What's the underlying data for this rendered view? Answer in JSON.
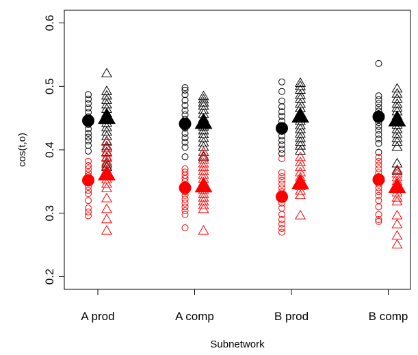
{
  "chart_data": {
    "type": "scatter",
    "xlabel": "Subnetwork",
    "ylabel": "cos(t,o)",
    "categories": [
      "A prod",
      "A comp",
      "B prod",
      "B comp"
    ],
    "ylim": [
      0.18,
      0.62
    ],
    "yticks": [
      0.2,
      0.3,
      0.4,
      0.5,
      0.6
    ],
    "grid": false,
    "legend": "none",
    "colors": {
      "black": "#000000",
      "red": "#ff0000"
    },
    "series": [
      {
        "marker": "circle",
        "color": "#000000",
        "offset": "left",
        "values": [
          [
            0.487,
            0.48,
            0.473,
            0.466,
            0.459,
            0.452,
            0.446,
            0.44,
            0.433,
            0.426,
            0.42,
            0.414,
            0.407,
            0.398
          ],
          [
            0.498,
            0.494,
            0.487,
            0.478,
            0.47,
            0.462,
            0.455,
            0.448,
            0.441,
            0.434,
            0.426,
            0.419,
            0.412,
            0.404,
            0.389
          ],
          [
            0.507,
            0.492,
            0.477,
            0.468,
            0.46,
            0.453,
            0.445,
            0.437,
            0.429,
            0.422,
            0.415,
            0.408,
            0.401,
            0.394
          ],
          [
            0.536,
            0.485,
            0.479,
            0.473,
            0.467,
            0.461,
            0.455,
            0.449,
            0.443,
            0.437,
            0.431,
            0.424,
            0.417,
            0.41,
            0.396
          ]
        ]
      },
      {
        "marker": "triangle",
        "color": "#000000",
        "offset": "right",
        "values": [
          [
            0.52,
            0.492,
            0.485,
            0.478,
            0.471,
            0.464,
            0.457,
            0.45,
            0.442,
            0.435,
            0.428,
            0.421,
            0.413,
            0.405,
            0.396,
            0.387,
            0.378,
            0.372
          ],
          [
            0.484,
            0.479,
            0.474,
            0.469,
            0.462,
            0.456,
            0.449,
            0.443,
            0.436,
            0.43,
            0.424,
            0.418,
            0.411,
            0.404,
            0.396,
            0.388
          ],
          [
            0.505,
            0.5,
            0.494,
            0.486,
            0.48,
            0.472,
            0.465,
            0.458,
            0.452,
            0.445,
            0.438,
            0.432,
            0.425,
            0.418,
            0.412,
            0.406,
            0.398
          ],
          [
            0.496,
            0.488,
            0.48,
            0.472,
            0.466,
            0.46,
            0.453,
            0.446,
            0.439,
            0.432,
            0.425,
            0.418,
            0.412,
            0.404,
            0.378,
            0.366
          ]
        ]
      },
      {
        "marker": "circle",
        "color": "#ff0000",
        "offset": "left",
        "values": [
          [
            0.382,
            0.375,
            0.37,
            0.364,
            0.359,
            0.354,
            0.348,
            0.342,
            0.336,
            0.331,
            0.32,
            0.308,
            0.302,
            0.296
          ],
          [
            0.37,
            0.365,
            0.36,
            0.355,
            0.35,
            0.345,
            0.34,
            0.334,
            0.328,
            0.322,
            0.316,
            0.31,
            0.304,
            0.298,
            0.277
          ],
          [
            0.386,
            0.364,
            0.358,
            0.352,
            0.346,
            0.34,
            0.334,
            0.328,
            0.322,
            0.316,
            0.308,
            0.298,
            0.29,
            0.283,
            0.276,
            0.27
          ],
          [
            0.388,
            0.382,
            0.376,
            0.37,
            0.364,
            0.358,
            0.352,
            0.346,
            0.34,
            0.334,
            0.328,
            0.32,
            0.31,
            0.298,
            0.29,
            0.287
          ]
        ]
      },
      {
        "marker": "triangle",
        "color": "#ff0000",
        "offset": "right",
        "values": [
          [
            0.412,
            0.402,
            0.395,
            0.388,
            0.381,
            0.374,
            0.367,
            0.36,
            0.353,
            0.346,
            0.339,
            0.323,
            0.306,
            0.29,
            0.272
          ],
          [
            0.396,
            0.39,
            0.384,
            0.378,
            0.372,
            0.366,
            0.36,
            0.354,
            0.348,
            0.342,
            0.336,
            0.33,
            0.324,
            0.318,
            0.312,
            0.306,
            0.272
          ],
          [
            0.388,
            0.38,
            0.372,
            0.364,
            0.356,
            0.349,
            0.342,
            0.335,
            0.328,
            0.296
          ],
          [
            0.368,
            0.362,
            0.356,
            0.35,
            0.344,
            0.338,
            0.332,
            0.324,
            0.318,
            0.296,
            0.282,
            0.264,
            0.25
          ]
        ]
      }
    ],
    "means": [
      {
        "marker": "circle",
        "color": "#000000",
        "offset": "left",
        "values": [
          0.446,
          0.441,
          0.434,
          0.452
        ]
      },
      {
        "marker": "triangle",
        "color": "#000000",
        "offset": "right",
        "values": [
          0.45,
          0.442,
          0.452,
          0.446
        ]
      },
      {
        "marker": "circle",
        "color": "#ff0000",
        "offset": "left",
        "values": [
          0.352,
          0.34,
          0.326,
          0.353
        ]
      },
      {
        "marker": "triangle",
        "color": "#ff0000",
        "offset": "right",
        "values": [
          0.361,
          0.342,
          0.347,
          0.341
        ]
      }
    ]
  }
}
